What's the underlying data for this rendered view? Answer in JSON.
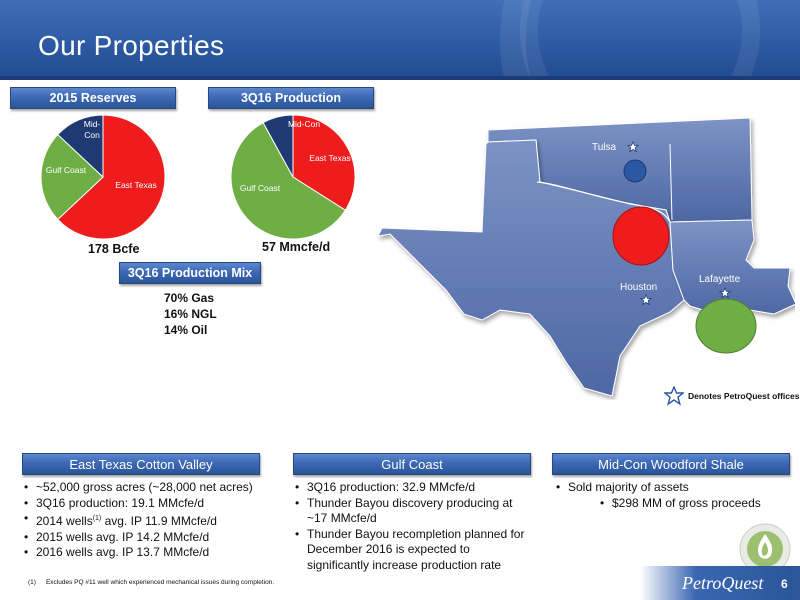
{
  "slide": {
    "title": "Our Properties",
    "page_number": "6",
    "brand": "PetroQuest"
  },
  "reserves": {
    "header": "2015 Reserves",
    "total": "178 Bcfe",
    "slices": [
      {
        "label": "East Texas",
        "value": 63,
        "color": "#ee1c1c"
      },
      {
        "label": "Gulf Coast",
        "value": 24,
        "color": "#6fae45"
      },
      {
        "label": "Mid-\nCon",
        "value": 13,
        "color": "#1f3a73"
      }
    ]
  },
  "production": {
    "header": "3Q16 Production",
    "total": "57 Mmcfe/d",
    "slices": [
      {
        "label": "East Texas",
        "value": 34,
        "color": "#ee1c1c"
      },
      {
        "label": "Gulf Coast",
        "value": 58,
        "color": "#6fae45"
      },
      {
        "label": "Mid-Con",
        "value": 8,
        "color": "#1f3a73"
      }
    ]
  },
  "mix": {
    "header": "3Q16 Production Mix",
    "lines": [
      "70% Gas",
      "16% NGL",
      "14% Oil"
    ]
  },
  "map": {
    "cities": {
      "tulsa": "Tulsa",
      "houston": "Houston",
      "lafayette": "Lafayette"
    },
    "legend": "Denotes PetroQuest offices"
  },
  "sections": {
    "east_texas": {
      "header": "East Texas Cotton Valley",
      "bullets": [
        "~52,000 gross acres (~28,000 net acres)",
        "3Q16 production:  19.1 MMcfe/d",
        "2014 wells",
        "2015 wells avg. IP 14.2 MMcfe/d",
        "2016 wells avg. IP 13.7 MMcfe/d"
      ],
      "wells_sup": "(1)",
      "wells_rest": " avg. IP 11.9  MMcfe/d"
    },
    "gulf_coast": {
      "header": "Gulf Coast",
      "bullets": [
        "3Q16 production:  32.9 MMcfe/d",
        "Thunder Bayou discovery producing at ~17 MMcfe/d",
        "Thunder Bayou recompletion planned for December 2016 is expected to significantly increase production rate"
      ]
    },
    "midcon": {
      "header": "Mid-Con Woodford Shale",
      "bullets": [
        "Sold majority of assets",
        "$298 MM of gross proceeds"
      ]
    }
  },
  "footnote": {
    "marker": "(1)",
    "text": "Excludes PQ #11 well which experienced mechanical issues during completion."
  }
}
